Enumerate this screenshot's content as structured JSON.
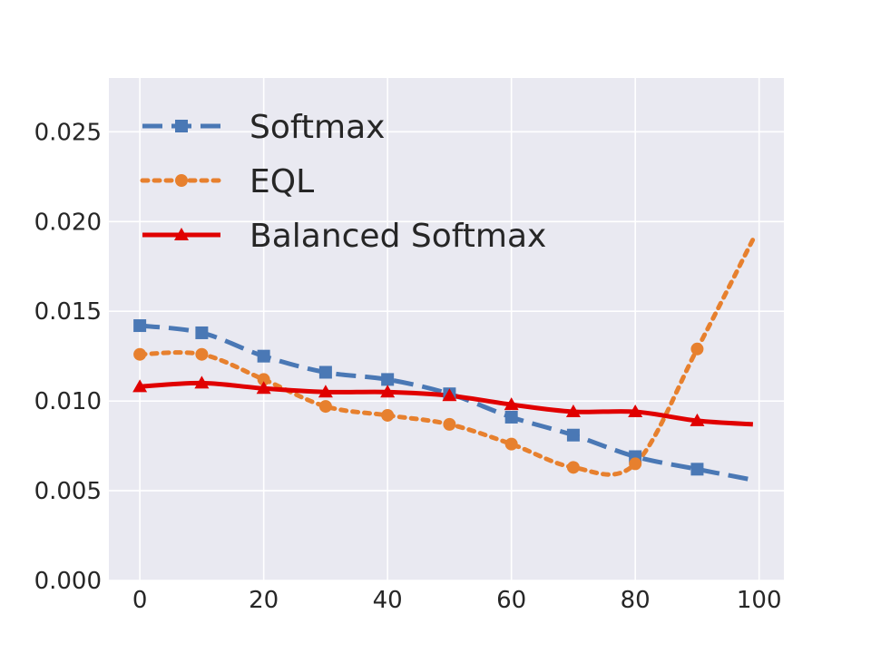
{
  "chart_data": {
    "type": "line",
    "x": [
      0,
      10,
      20,
      30,
      40,
      50,
      60,
      70,
      80,
      90
    ],
    "xlim": [
      -5,
      104
    ],
    "ylim": [
      0.0,
      0.028
    ],
    "xticks": [
      0,
      20,
      40,
      60,
      80,
      100
    ],
    "yticks": [
      0.0,
      0.005,
      0.01,
      0.015,
      0.02,
      0.025
    ],
    "xtick_labels": [
      "0",
      "20",
      "40",
      "60",
      "80",
      "100"
    ],
    "ytick_labels": [
      "0.000",
      "0.005",
      "0.010",
      "0.015",
      "0.020",
      "0.025"
    ],
    "grid": true,
    "legend_position": "top-left",
    "series": [
      {
        "name": "Softmax",
        "color": "#4a78b5",
        "line_style": "dashed",
        "marker": "square",
        "values": [
          0.0142,
          0.0138,
          0.0125,
          0.0116,
          0.0112,
          0.0104,
          0.0091,
          0.0081,
          0.0069,
          0.0062
        ],
        "curve_end": [
          99,
          0.0056
        ]
      },
      {
        "name": "EQL",
        "color": "#e7802e",
        "line_style": "dotted",
        "marker": "circle",
        "values": [
          0.0126,
          0.0126,
          0.0112,
          0.0097,
          0.0092,
          0.0087,
          0.0076,
          0.0063,
          0.0065,
          0.0129
        ],
        "curve_end": [
          99,
          0.019
        ]
      },
      {
        "name": "Balanced Softmax",
        "color": "#e00000",
        "line_style": "solid",
        "marker": "triangle",
        "values": [
          0.0108,
          0.011,
          0.0107,
          0.0105,
          0.0105,
          0.0103,
          0.0098,
          0.0094,
          0.0094,
          0.0089
        ],
        "curve_end": [
          99,
          0.0087
        ]
      }
    ]
  }
}
